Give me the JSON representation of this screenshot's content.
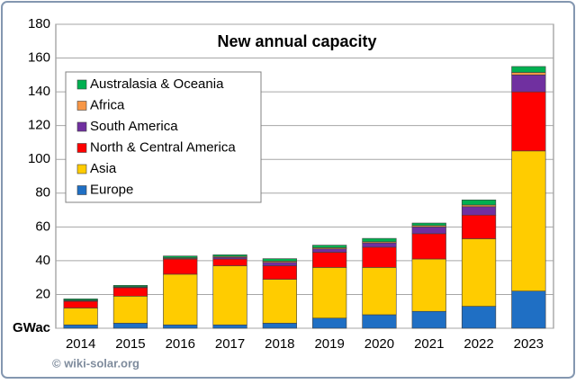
{
  "chart_data": {
    "type": "stacked_bar",
    "title": "New annual capacity",
    "source": "© wiki-solar.org",
    "categories": [
      "2014",
      "2015",
      "2016",
      "2017",
      "2018",
      "2019",
      "2020",
      "2021",
      "2022",
      "2023"
    ],
    "series": [
      {
        "name": "Europe",
        "color": "#1f6fc4",
        "values": [
          2,
          3,
          2,
          2,
          3,
          6,
          8,
          10,
          13,
          22
        ]
      },
      {
        "name": "Asia",
        "color": "#ffcc00",
        "values": [
          10,
          16,
          30,
          35,
          26,
          30,
          28,
          31,
          40,
          83
        ]
      },
      {
        "name": "North & Central America",
        "color": "#ff0000",
        "values": [
          4,
          5,
          9,
          4,
          8,
          9,
          12,
          15,
          14,
          35
        ]
      },
      {
        "name": "South America",
        "color": "#7030a0",
        "values": [
          0.3,
          0.3,
          0.3,
          1,
          2,
          2,
          2.5,
          4,
          5,
          10
        ]
      },
      {
        "name": "Africa",
        "color": "#f79646",
        "values": [
          0.3,
          0.3,
          0.5,
          0.5,
          0.7,
          0.7,
          0.7,
          0.8,
          1,
          1.5
        ]
      },
      {
        "name": "Australasia & Oceania",
        "color": "#00b050",
        "values": [
          0.8,
          0.8,
          1,
          1,
          1.5,
          1.5,
          2,
          1.5,
          3,
          3.5
        ]
      }
    ],
    "ylim": [
      0,
      180
    ],
    "yticks": [
      {
        "value": 0,
        "label": "GWac"
      },
      20,
      40,
      60,
      80,
      100,
      120,
      140,
      160,
      180
    ],
    "grid": true,
    "legend": "upper left"
  }
}
